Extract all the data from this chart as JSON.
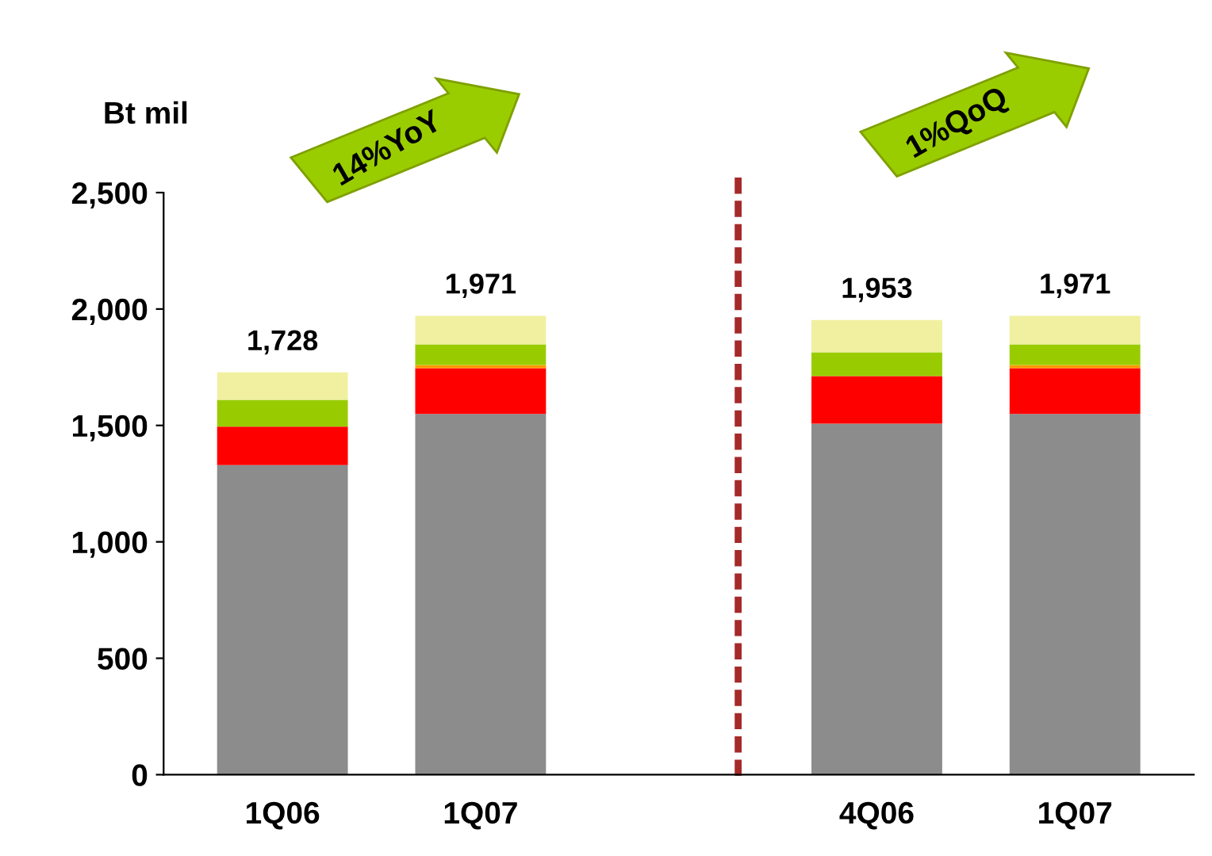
{
  "chart_data": {
    "type": "bar",
    "stacked": true,
    "ylabel": "Bt mil",
    "categories": [
      "1Q06",
      "1Q07",
      null,
      "4Q06",
      "1Q07"
    ],
    "series": [
      {
        "color": "#8c8c8c",
        "values": [
          1330,
          1549,
          null,
          1508,
          1549
        ]
      },
      {
        "color": "#ff0000",
        "values": [
          165,
          197,
          null,
          204,
          197
        ]
      },
      {
        "color": "#ff9900",
        "values": [
          0,
          14,
          null,
          0,
          14
        ]
      },
      {
        "color": "#99cc00",
        "values": [
          115,
          88,
          null,
          102,
          88
        ]
      },
      {
        "color": "#f0f0a0",
        "values": [
          118,
          123,
          null,
          139,
          123
        ]
      }
    ],
    "totals": [
      "1,728",
      "1,971",
      null,
      "1,953",
      "1,971"
    ],
    "ylim": [
      0,
      2500
    ],
    "yticks": [
      0,
      500,
      {
        "value": 1000,
        "label": "1,000"
      },
      {
        "value": 1500,
        "label": "1,500"
      },
      {
        "value": 2000,
        "label": "2,000"
      },
      {
        "value": 2500,
        "label": "2,500"
      }
    ],
    "annotations": [
      "14%YoY",
      "1%QoQ"
    ],
    "grid": false,
    "legend": false
  }
}
